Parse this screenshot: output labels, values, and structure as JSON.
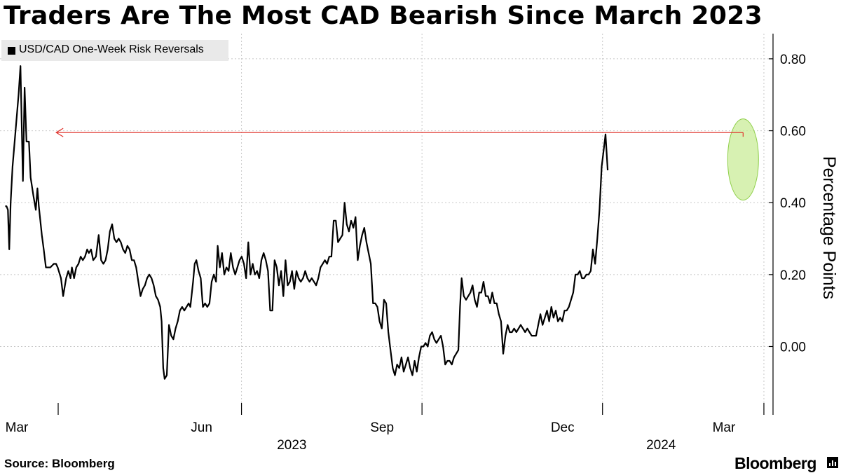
{
  "title": "Traders Are The Most CAD Bearish Since March 2023",
  "source": "Source: Bloomberg",
  "brand": "Bloomberg",
  "brand_icon": "bar-chart-icon",
  "colors": {
    "line": "#000000",
    "arrow": "#e0302a",
    "highlight_fill": "#c9ec98",
    "highlight_stroke": "#8fcf4a",
    "legend_bg": "#e9e9e9",
    "grid": "#c8c8c8"
  },
  "chart_data": {
    "type": "line",
    "title": "Traders Are The Most CAD Bearish Since March 2023",
    "xlabel": "",
    "ylabel": "Percentage Points",
    "ylim": [
      -0.19,
      0.87
    ],
    "yticks": [
      0.0,
      0.2,
      0.4,
      0.6,
      0.8
    ],
    "ytick_labels": [
      "0.00",
      "0.20",
      "0.40",
      "0.60",
      "0.80"
    ],
    "xlim": [
      0,
      267
    ],
    "xticks": [
      {
        "x": 0,
        "label": "Mar"
      },
      {
        "x": 66,
        "label": "Jun"
      },
      {
        "x": 132,
        "label": "Sep"
      },
      {
        "x": 198,
        "label": "Dec"
      },
      {
        "x": 257,
        "label": "Mar"
      }
    ],
    "year_labels": [
      {
        "x": 99,
        "label": "2023"
      },
      {
        "x": 234,
        "label": "2024"
      }
    ],
    "legend": [
      "USD/CAD One-Week Risk Reversals"
    ],
    "legend_position": "top-left",
    "grid": true,
    "annotation": {
      "type": "arrow",
      "from_x": 261.7,
      "to_x": 10.3,
      "y": 0.595,
      "highlight_x": 261.7,
      "highlight_y": 0.52
    },
    "series": [
      {
        "name": "USD/CAD One-Week Risk Reversals",
        "points": [
          [
            -5.8,
            0.39
          ],
          [
            -5.3,
            0.39
          ],
          [
            -4.8,
            0.38
          ],
          [
            -4.3,
            0.27
          ],
          [
            -3.8,
            0.4
          ],
          [
            -3.1,
            0.5
          ],
          [
            -2.0,
            0.6
          ],
          [
            -0.9,
            0.7
          ],
          [
            -0.2,
            0.78
          ],
          [
            0.7,
            0.46
          ],
          [
            1.3,
            0.72
          ],
          [
            2.0,
            0.57
          ],
          [
            2.9,
            0.57
          ],
          [
            3.5,
            0.47
          ],
          [
            4.5,
            0.42
          ],
          [
            5.4,
            0.38
          ],
          [
            6.0,
            0.44
          ],
          [
            6.5,
            0.39
          ],
          [
            7.6,
            0.31
          ],
          [
            8.3,
            0.27
          ],
          [
            9.1,
            0.22
          ],
          [
            9.9,
            0.22
          ],
          [
            10.7,
            0.22
          ],
          [
            12.0,
            0.23
          ],
          [
            12.8,
            0.23
          ],
          [
            13.4,
            0.22
          ],
          [
            14.6,
            0.19
          ],
          [
            15.4,
            0.14
          ],
          [
            16.5,
            0.19
          ],
          [
            17.3,
            0.21
          ],
          [
            18.1,
            0.19
          ],
          [
            18.6,
            0.22
          ],
          [
            19.4,
            0.19
          ],
          [
            20.2,
            0.22
          ],
          [
            21.0,
            0.23
          ],
          [
            21.8,
            0.25
          ],
          [
            22.6,
            0.24
          ],
          [
            23.4,
            0.25
          ],
          [
            24.2,
            0.27
          ],
          [
            24.8,
            0.26
          ],
          [
            25.6,
            0.27
          ],
          [
            26.4,
            0.24
          ],
          [
            27.4,
            0.25
          ],
          [
            28.4,
            0.31
          ],
          [
            29.3,
            0.24
          ],
          [
            30.1,
            0.23
          ],
          [
            30.9,
            0.24
          ],
          [
            31.7,
            0.27
          ],
          [
            32.5,
            0.32
          ],
          [
            33.3,
            0.34
          ],
          [
            34.1,
            0.3
          ],
          [
            34.9,
            0.29
          ],
          [
            35.7,
            0.3
          ],
          [
            36.5,
            0.29
          ],
          [
            37.3,
            0.27
          ],
          [
            38.1,
            0.26
          ],
          [
            38.9,
            0.28
          ],
          [
            39.7,
            0.27
          ],
          [
            40.5,
            0.24
          ],
          [
            41.3,
            0.24
          ],
          [
            42.1,
            0.22
          ],
          [
            42.9,
            0.18
          ],
          [
            43.7,
            0.14
          ],
          [
            44.5,
            0.16
          ],
          [
            45.3,
            0.17
          ],
          [
            46.1,
            0.19
          ],
          [
            46.9,
            0.2
          ],
          [
            47.7,
            0.19
          ],
          [
            48.5,
            0.17
          ],
          [
            49.3,
            0.14
          ],
          [
            50.1,
            0.13
          ],
          [
            50.9,
            0.11
          ],
          [
            51.4,
            0.07
          ],
          [
            52.0,
            -0.06
          ],
          [
            52.5,
            -0.09
          ],
          [
            53.3,
            -0.08
          ],
          [
            54.1,
            0.06
          ],
          [
            54.9,
            0.03
          ],
          [
            55.7,
            0.02
          ],
          [
            56.5,
            0.05
          ],
          [
            57.3,
            0.07
          ],
          [
            58.1,
            0.1
          ],
          [
            58.9,
            0.11
          ],
          [
            59.7,
            0.1
          ],
          [
            60.5,
            0.11
          ],
          [
            61.3,
            0.12
          ],
          [
            61.9,
            0.11
          ],
          [
            62.9,
            0.18
          ],
          [
            63.5,
            0.23
          ],
          [
            64.1,
            0.24
          ],
          [
            64.9,
            0.21
          ],
          [
            65.7,
            0.19
          ],
          [
            66.5,
            0.11
          ],
          [
            67.3,
            0.12
          ],
          [
            68.1,
            0.11
          ],
          [
            68.9,
            0.12
          ],
          [
            69.7,
            0.18
          ],
          [
            70.5,
            0.2
          ],
          [
            71.3,
            0.18
          ],
          [
            71.9,
            0.28
          ],
          [
            72.7,
            0.22
          ],
          [
            73.5,
            0.26
          ],
          [
            74.3,
            0.2
          ],
          [
            75.1,
            0.22
          ],
          [
            75.9,
            0.21
          ],
          [
            76.7,
            0.26
          ],
          [
            77.5,
            0.22
          ],
          [
            78.3,
            0.2
          ],
          [
            79.1,
            0.22
          ],
          [
            79.9,
            0.24
          ],
          [
            80.7,
            0.25
          ],
          [
            81.5,
            0.23
          ],
          [
            82.3,
            0.19
          ],
          [
            83.1,
            0.29
          ],
          [
            83.9,
            0.2
          ],
          [
            84.7,
            0.23
          ],
          [
            85.5,
            0.2
          ],
          [
            86.3,
            0.21
          ],
          [
            87.1,
            0.19
          ],
          [
            87.9,
            0.24
          ],
          [
            88.7,
            0.26
          ],
          [
            89.5,
            0.24
          ],
          [
            90.3,
            0.21
          ],
          [
            91.1,
            0.1
          ],
          [
            91.9,
            0.1
          ],
          [
            92.7,
            0.24
          ],
          [
            93.5,
            0.22
          ],
          [
            94.3,
            0.17
          ],
          [
            95.1,
            0.21
          ],
          [
            95.9,
            0.14
          ],
          [
            96.7,
            0.24
          ],
          [
            97.5,
            0.17
          ],
          [
            98.3,
            0.18
          ],
          [
            99.1,
            0.21
          ],
          [
            99.9,
            0.16
          ],
          [
            100.7,
            0.21
          ],
          [
            101.5,
            0.19
          ],
          [
            102.3,
            0.18
          ],
          [
            103.1,
            0.19
          ],
          [
            103.9,
            0.21
          ],
          [
            104.7,
            0.19
          ],
          [
            105.5,
            0.18
          ],
          [
            106.3,
            0.19
          ],
          [
            107.1,
            0.18
          ],
          [
            107.9,
            0.17
          ],
          [
            108.7,
            0.19
          ],
          [
            109.5,
            0.22
          ],
          [
            110.3,
            0.23
          ],
          [
            111.1,
            0.24
          ],
          [
            111.9,
            0.23
          ],
          [
            112.7,
            0.25
          ],
          [
            113.5,
            0.25
          ],
          [
            114.3,
            0.35
          ],
          [
            115.1,
            0.35
          ],
          [
            115.9,
            0.29
          ],
          [
            116.7,
            0.3
          ],
          [
            117.5,
            0.31
          ],
          [
            118.3,
            0.4
          ],
          [
            119.1,
            0.34
          ],
          [
            119.9,
            0.32
          ],
          [
            120.7,
            0.35
          ],
          [
            121.5,
            0.33
          ],
          [
            122.3,
            0.36
          ],
          [
            123.1,
            0.24
          ],
          [
            123.9,
            0.28
          ],
          [
            124.7,
            0.31
          ],
          [
            125.5,
            0.33
          ],
          [
            126.3,
            0.29
          ],
          [
            127.1,
            0.26
          ],
          [
            127.9,
            0.23
          ],
          [
            128.7,
            0.12
          ],
          [
            129.5,
            0.12
          ],
          [
            130.3,
            0.11
          ],
          [
            131.1,
            0.07
          ],
          [
            131.9,
            0.05
          ],
          [
            132.7,
            0.13
          ],
          [
            133.5,
            0.12
          ],
          [
            134.3,
            0.04
          ],
          [
            135.1,
            -0.01
          ],
          [
            135.9,
            -0.06
          ],
          [
            136.7,
            -0.08
          ],
          [
            137.5,
            -0.05
          ],
          [
            138.3,
            -0.06
          ],
          [
            139.1,
            -0.03
          ],
          [
            139.9,
            -0.07
          ],
          [
            140.7,
            -0.05
          ],
          [
            141.5,
            -0.03
          ],
          [
            142.3,
            -0.06
          ],
          [
            143.1,
            -0.08
          ],
          [
            143.9,
            -0.04
          ],
          [
            144.7,
            -0.07
          ],
          [
            145.5,
            -0.03
          ],
          [
            146.3,
            0.0
          ],
          [
            147.1,
            0.0
          ],
          [
            147.9,
            0.01
          ],
          [
            148.7,
            0.0
          ],
          [
            149.5,
            0.03
          ],
          [
            150.3,
            0.04
          ],
          [
            151.1,
            0.02
          ],
          [
            151.9,
            0.01
          ],
          [
            152.7,
            0.02
          ],
          [
            153.5,
            0.03
          ],
          [
            154.3,
            0.0
          ],
          [
            155.1,
            -0.05
          ],
          [
            155.9,
            -0.04
          ],
          [
            156.7,
            -0.04
          ],
          [
            157.5,
            -0.05
          ],
          [
            158.3,
            -0.03
          ],
          [
            159.1,
            -0.02
          ],
          [
            159.9,
            -0.01
          ],
          [
            160.5,
            0.11
          ],
          [
            161.1,
            0.19
          ],
          [
            161.9,
            0.14
          ],
          [
            162.7,
            0.13
          ],
          [
            163.5,
            0.14
          ],
          [
            164.3,
            0.15
          ],
          [
            165.1,
            0.17
          ],
          [
            165.9,
            0.13
          ],
          [
            166.7,
            0.11
          ],
          [
            167.5,
            0.15
          ],
          [
            168.3,
            0.15
          ],
          [
            169.1,
            0.18
          ],
          [
            169.9,
            0.14
          ],
          [
            170.7,
            0.14
          ],
          [
            171.5,
            0.12
          ],
          [
            172.3,
            0.15
          ],
          [
            173.1,
            0.12
          ],
          [
            173.9,
            0.12
          ],
          [
            174.7,
            0.09
          ],
          [
            175.5,
            0.07
          ],
          [
            176.3,
            -0.02
          ],
          [
            177.1,
            0.03
          ],
          [
            177.9,
            0.06
          ],
          [
            178.7,
            0.04
          ],
          [
            179.5,
            0.04
          ],
          [
            180.3,
            0.05
          ],
          [
            181.1,
            0.04
          ],
          [
            181.9,
            0.05
          ],
          [
            182.7,
            0.06
          ],
          [
            183.5,
            0.05
          ],
          [
            184.3,
            0.04
          ],
          [
            185.1,
            0.05
          ],
          [
            185.9,
            0.04
          ],
          [
            186.7,
            0.03
          ],
          [
            187.5,
            0.03
          ],
          [
            188.3,
            0.03
          ],
          [
            189.1,
            0.06
          ],
          [
            189.9,
            0.09
          ],
          [
            190.7,
            0.06
          ],
          [
            191.5,
            0.08
          ],
          [
            192.3,
            0.1
          ],
          [
            193.1,
            0.07
          ],
          [
            193.9,
            0.11
          ],
          [
            194.7,
            0.08
          ],
          [
            195.5,
            0.1
          ],
          [
            196.3,
            0.07
          ],
          [
            197.1,
            0.08
          ],
          [
            197.9,
            0.07
          ],
          [
            198.7,
            0.1
          ],
          [
            199.5,
            0.1
          ],
          [
            200.3,
            0.11
          ],
          [
            201.1,
            0.13
          ],
          [
            201.9,
            0.15
          ],
          [
            202.7,
            0.2
          ],
          [
            203.5,
            0.2
          ],
          [
            204.3,
            0.21
          ],
          [
            205.1,
            0.19
          ],
          [
            205.9,
            0.19
          ],
          [
            206.7,
            0.2
          ],
          [
            207.5,
            0.2
          ],
          [
            208.3,
            0.21
          ],
          [
            209.1,
            0.27
          ],
          [
            209.9,
            0.23
          ],
          [
            210.7,
            0.3
          ],
          [
            211.5,
            0.38
          ],
          [
            212.3,
            0.5
          ],
          [
            213.1,
            0.55
          ],
          [
            213.7,
            0.59
          ],
          [
            214.5,
            0.49
          ]
        ]
      }
    ]
  }
}
